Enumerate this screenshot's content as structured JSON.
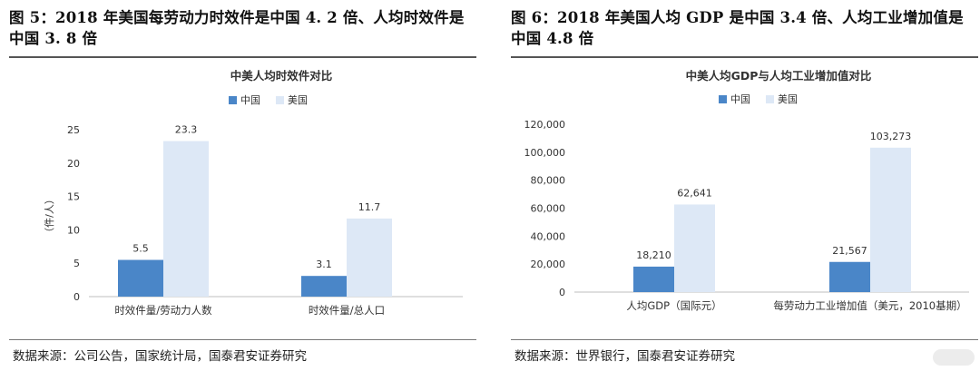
{
  "panels": [
    {
      "figure_title": "图 5：2018 年美国每劳动力时效件是中国 4. 2 倍、人均时效件是中国 3. 8 倍",
      "source": "数据来源：公司公告，国家统计局，国泰君安证券研究"
    },
    {
      "figure_title": "图 6：2018 年美国人均 GDP 是中国 3.4 倍、人均工业增加值是中国 4.8 倍",
      "source": "数据来源：世界银行，国泰君安证券研究"
    }
  ],
  "colors": {
    "china": "#4a86c8",
    "usa": "#dde8f6",
    "axis": "#bfbfbf"
  },
  "chart_data": [
    {
      "type": "bar",
      "title": "中美人均时效件对比",
      "ylabel": "（件/人）",
      "categories": [
        "时效件量/劳动力人数",
        "时效件量/总人口"
      ],
      "series": [
        {
          "name": "中国",
          "values": [
            5.5,
            3.1
          ]
        },
        {
          "name": "美国",
          "values": [
            23.3,
            11.7
          ]
        }
      ],
      "data_labels": [
        [
          "5.5",
          "3.1"
        ],
        [
          "23.3",
          "11.7"
        ]
      ],
      "ylim": [
        0,
        25
      ],
      "yticks": [
        0,
        5,
        10,
        15,
        20,
        25
      ],
      "ytick_labels": [
        "0",
        "5",
        "10",
        "15",
        "20",
        "25"
      ],
      "legend": "top-left",
      "grid": false
    },
    {
      "type": "bar",
      "title": "中美人均GDP与人均工业增加值对比",
      "ylabel": "",
      "categories": [
        "人均GDP（国际元）",
        "每劳动力工业增加值（美元，2010基期）"
      ],
      "series": [
        {
          "name": "中国",
          "values": [
            18210,
            21567
          ]
        },
        {
          "name": "美国",
          "values": [
            62641,
            103273
          ]
        }
      ],
      "data_labels": [
        [
          "18,210",
          "21,567"
        ],
        [
          "62,641",
          "103,273"
        ]
      ],
      "ylim": [
        0,
        120000
      ],
      "yticks": [
        0,
        20000,
        40000,
        60000,
        80000,
        100000,
        120000
      ],
      "ytick_labels": [
        "0",
        "20,000",
        "40,000",
        "60,000",
        "80,000",
        "100,000",
        "120,000"
      ],
      "legend": "top-left",
      "grid": false
    }
  ]
}
